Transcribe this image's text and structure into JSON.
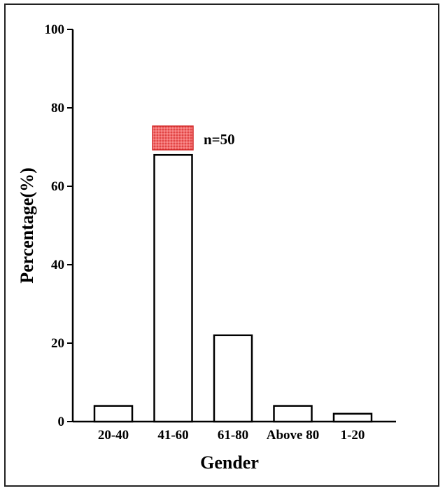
{
  "chart_data": {
    "type": "bar",
    "title": "",
    "xlabel": "Gender",
    "ylabel": "Percentage(%)",
    "categories": [
      "20-40",
      "41-60",
      "61-80",
      "Above 80",
      "1-20"
    ],
    "values": [
      4,
      68,
      22,
      4,
      2
    ],
    "ylim": [
      0,
      100
    ],
    "yticks": [
      "0",
      "20",
      "40",
      "60",
      "80",
      "100"
    ],
    "grid": false,
    "legend": {
      "placement": "top-center",
      "label": "n=50",
      "swatch_color": "#e8393a"
    },
    "bar_fill": "#ffffff",
    "bar_stroke": "#000000"
  }
}
